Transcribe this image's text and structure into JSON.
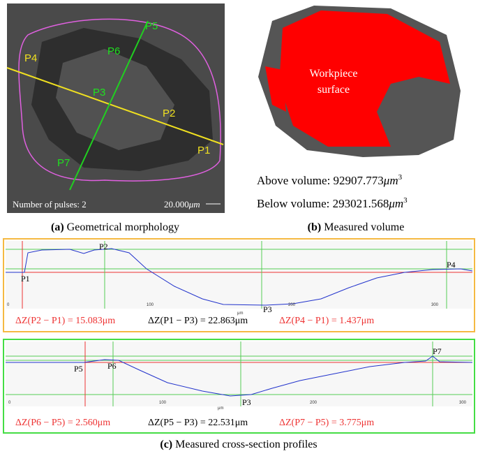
{
  "panel_a": {
    "point_labels": [
      "P4",
      "P5",
      "P6",
      "P3",
      "P2",
      "P1",
      "P7"
    ],
    "pulses": "Number of pulses: 2",
    "scale_value": "20.000",
    "scale_unit": "μm",
    "caption_tag": "(a)",
    "caption": "Geometrical morphology"
  },
  "panel_b": {
    "surface_label": [
      "Workpiece",
      "surface"
    ],
    "above_label": "Above volume:",
    "above_value": "92907.773",
    "below_label": "Below volume:",
    "below_value": "293021.568",
    "unit": "μm",
    "unit_exp": "3",
    "caption_tag": "(b)",
    "caption": "Measured volume"
  },
  "profile_1": {
    "x_ticks": [
      "0",
      "100",
      "200",
      "300"
    ],
    "x_unit": "μm",
    "point_labels": [
      "P1",
      "P2",
      "P3",
      "P4"
    ],
    "measurements": [
      "ΔZ(P2 − P1) = 15.083μm",
      "ΔZ(P1 − P3) = 22.863μm",
      "ΔZ(P4 − P1) = 1.437μm"
    ]
  },
  "profile_2": {
    "x_ticks": [
      "0",
      "100",
      "200",
      "300"
    ],
    "x_unit": "μm",
    "point_labels": [
      "P5",
      "P6",
      "P3",
      "P7"
    ],
    "measurements": [
      "ΔZ(P6 − P5) = 2.560μm",
      "ΔZ(P5 − P3) = 22.531μm",
      "ΔZ(P7 − P5) = 3.775μm"
    ]
  },
  "caption": {
    "tag": "(c)",
    "text": "Measured cross-section profiles"
  }
}
